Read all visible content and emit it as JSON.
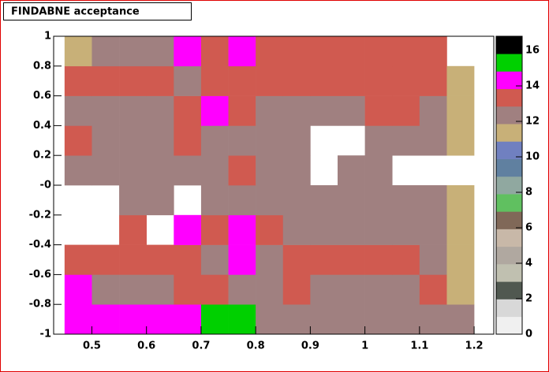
{
  "chart_data": {
    "type": "heatmap",
    "title": "FINDABNE acceptance",
    "xlim": [
      0.43,
      1.236
    ],
    "ylim": [
      -1,
      1
    ],
    "zlim": [
      0,
      16.8
    ],
    "xticks": [
      0.5,
      0.6,
      0.7,
      0.8,
      0.9,
      1,
      1.1,
      1.2
    ],
    "yticks": [
      -1,
      -0.8,
      -0.6,
      -0.4,
      -0.2,
      {
        "value": 0,
        "label": "-0"
      },
      0.2,
      0.4,
      0.6,
      0.8,
      1
    ],
    "zticks": [
      0,
      2,
      4,
      6,
      8,
      10,
      12,
      14,
      16
    ],
    "palette": [
      "#f0f0f0",
      "#d8d8d8",
      "#505850",
      "#c0c0b0",
      "#b0a8a0",
      "#c8b8a8",
      "#806858",
      "#60c060",
      "#90a8a0",
      "#6080a0",
      "#7080c0",
      "#c8b078",
      "#a08080",
      "#d05a50",
      "#ff00ff",
      "#00d000",
      "#000000"
    ],
    "x_edges": [
      0.45,
      0.5,
      0.55,
      0.6,
      0.65,
      0.7,
      0.75,
      0.8,
      0.85,
      0.9,
      0.95,
      1,
      1.05,
      1.1,
      1.15,
      1.2
    ],
    "y_edges": [
      -1,
      -0.8,
      -0.6,
      -0.4,
      -0.2,
      0,
      0.2,
      0.4,
      0.6,
      0.8,
      1
    ],
    "z": [
      [
        14.7,
        14.7,
        14.7,
        14.7,
        14.7,
        15.8,
        15.8,
        12.8,
        12.8,
        12.8,
        12.8,
        12.8,
        12.8,
        12.8,
        12.8
      ],
      [
        14.7,
        12.8,
        12.8,
        12.8,
        13.7,
        13.7,
        12.8,
        12.8,
        13.7,
        12.8,
        12.8,
        12.8,
        12.8,
        13.7,
        11.5
      ],
      [
        13.7,
        13.7,
        13.7,
        13.7,
        13.7,
        12.8,
        14.7,
        12.8,
        13.7,
        13.7,
        13.7,
        13.7,
        13.7,
        12.8,
        11.5
      ],
      [
        null,
        null,
        13.7,
        null,
        14.7,
        13.7,
        14.7,
        13.7,
        12.8,
        12.8,
        12.8,
        12.8,
        12.8,
        12.8,
        11.5
      ],
      [
        null,
        null,
        12.8,
        12.8,
        null,
        12.8,
        12.8,
        12.8,
        12.8,
        12.8,
        12.8,
        12.8,
        12.8,
        12.8,
        11.5
      ],
      [
        12.8,
        12.8,
        12.8,
        12.8,
        12.8,
        12.8,
        13.7,
        12.8,
        12.8,
        null,
        12.8,
        12.8,
        null,
        null,
        null
      ],
      [
        13.7,
        12.8,
        12.8,
        12.8,
        13.7,
        12.8,
        12.8,
        12.8,
        12.8,
        null,
        null,
        12.8,
        12.8,
        12.8,
        11.5
      ],
      [
        12.8,
        12.8,
        12.8,
        12.8,
        13.7,
        14.7,
        13.7,
        12.8,
        12.8,
        12.8,
        12.8,
        13.7,
        13.7,
        12.8,
        11.5
      ],
      [
        13.7,
        13.7,
        13.7,
        13.7,
        12.8,
        13.7,
        13.7,
        13.7,
        13.7,
        13.7,
        13.7,
        13.7,
        13.7,
        13.7,
        11.5
      ],
      [
        11.5,
        12.8,
        12.8,
        12.8,
        14.7,
        13.7,
        14.7,
        13.7,
        13.7,
        13.7,
        13.7,
        13.7,
        13.7,
        13.7,
        null
      ]
    ]
  }
}
